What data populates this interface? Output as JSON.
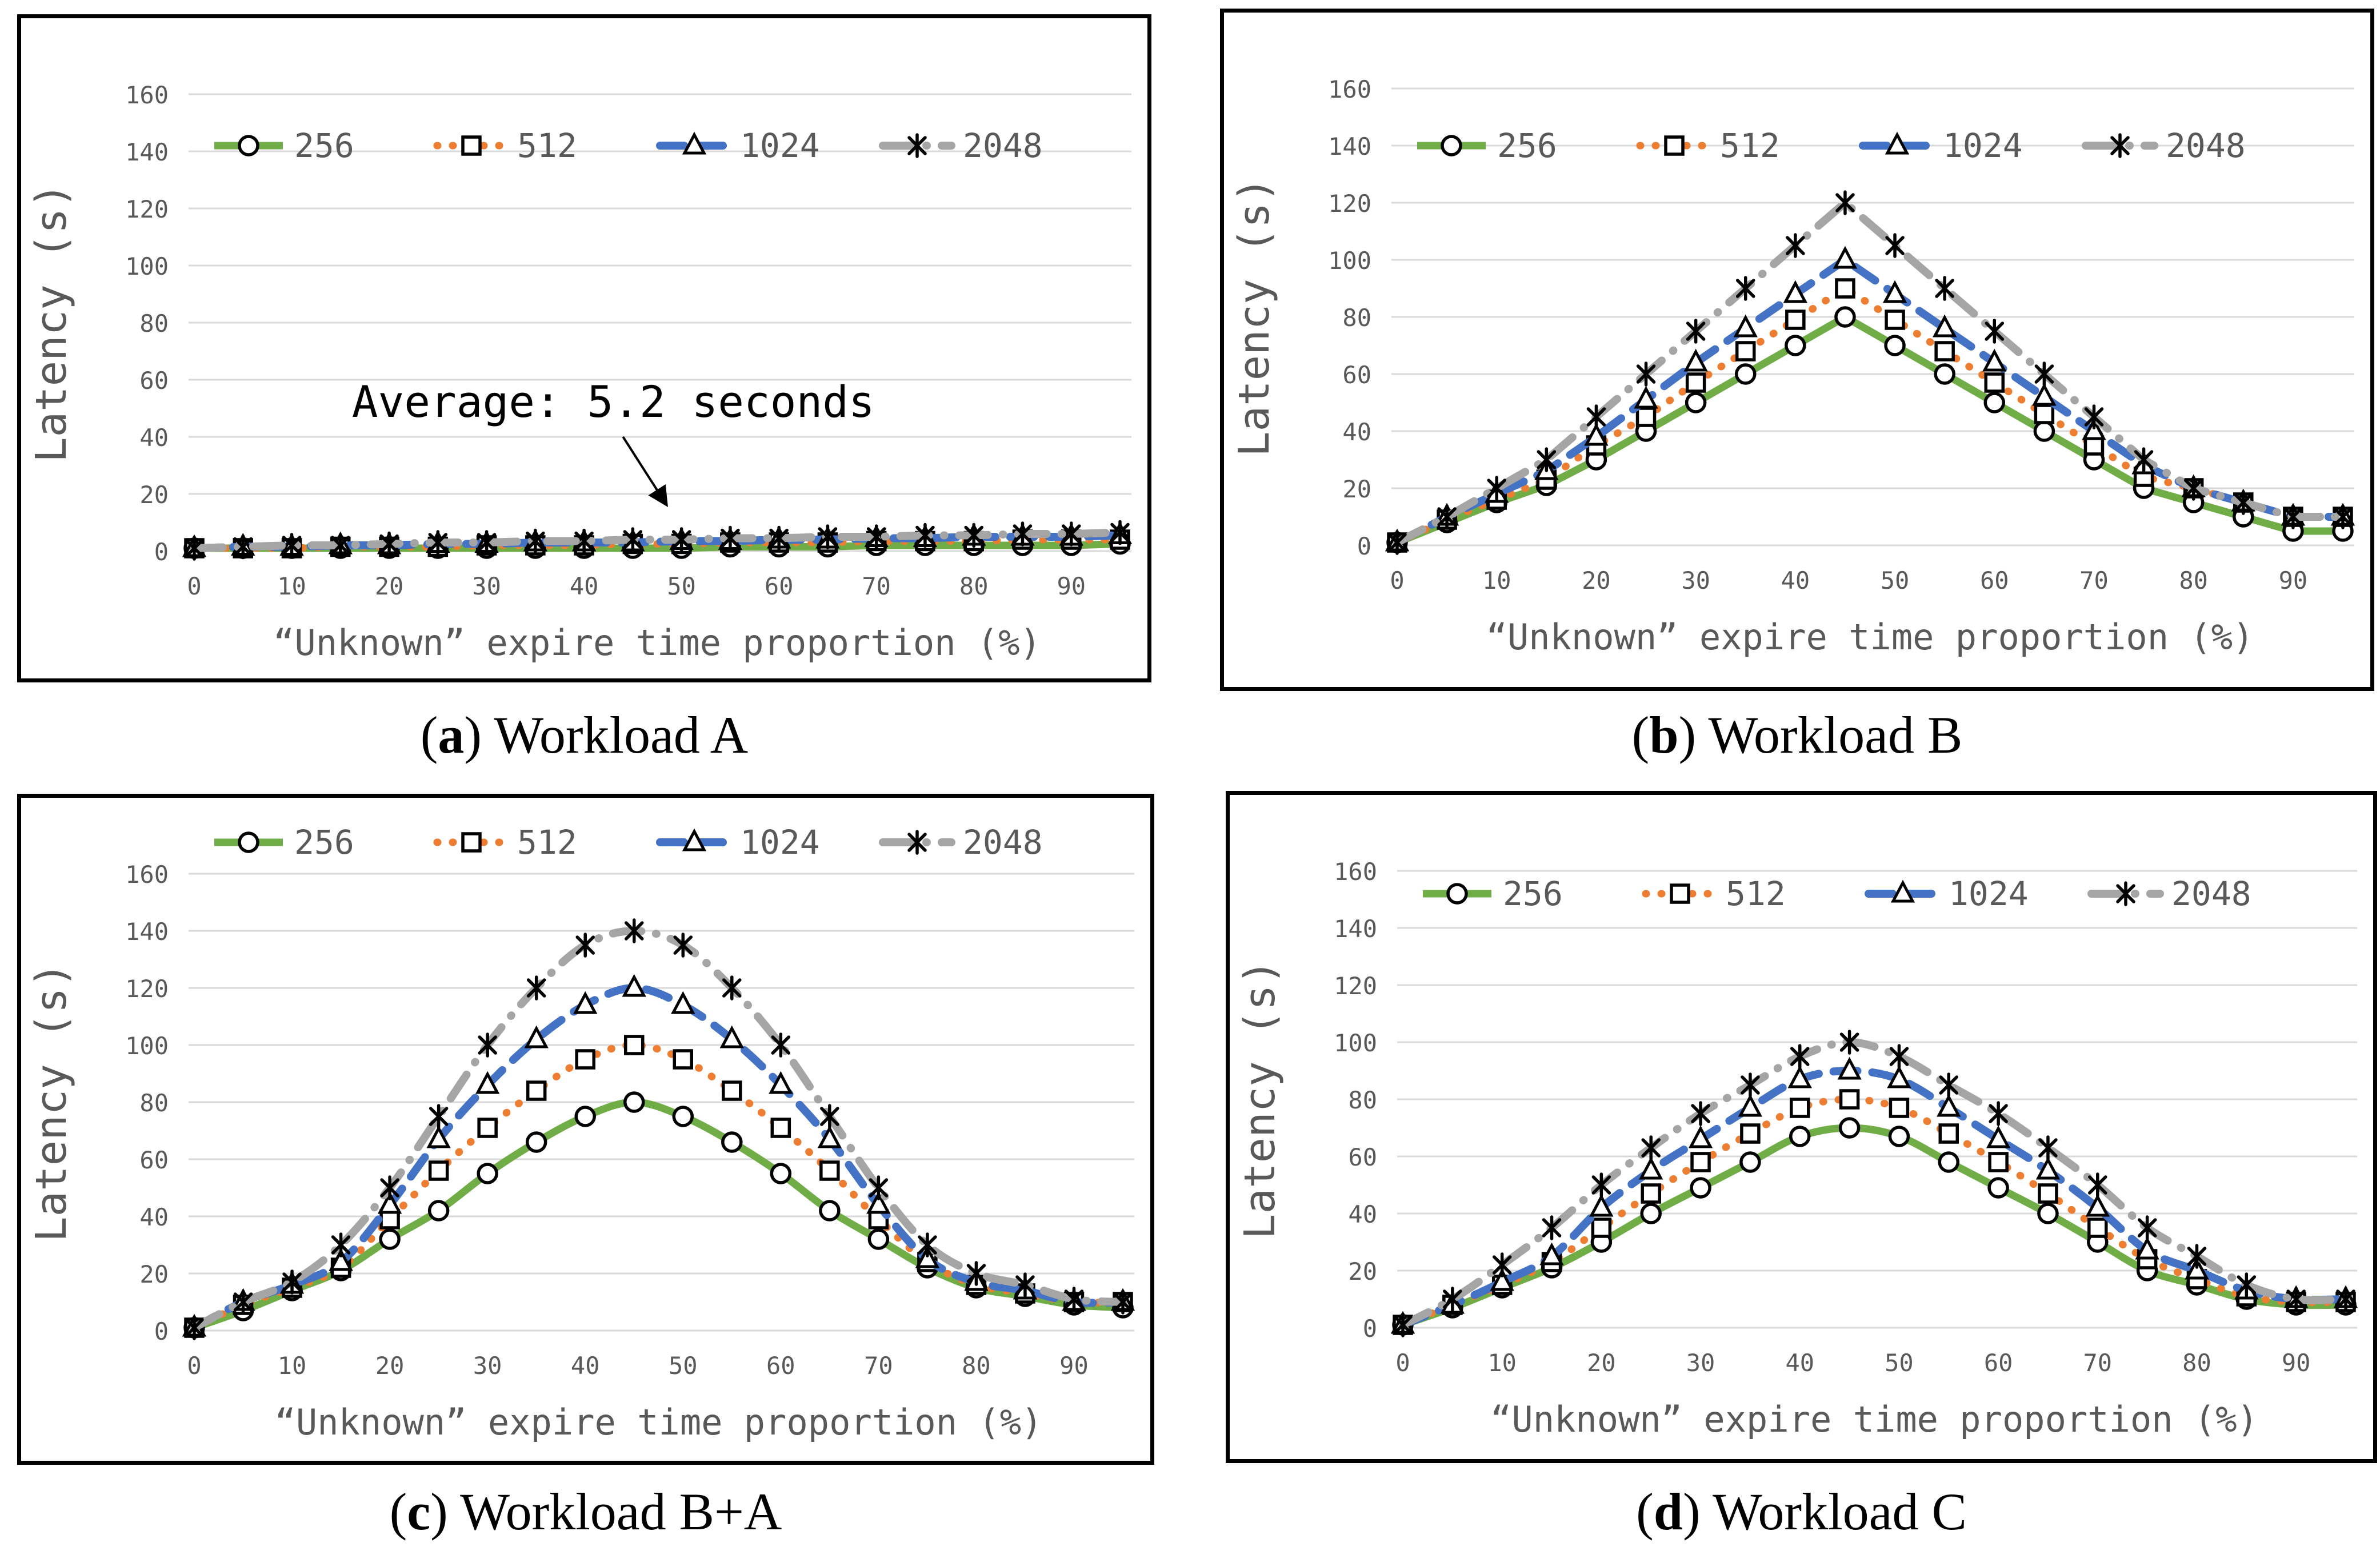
{
  "colors": {
    "green": "#70AD47",
    "orange": "#ED7D31",
    "blue": "#4472C4",
    "gray": "#A5A5A5",
    "axis_text": "#595959",
    "gridline": "#D9D9D9",
    "border": "#000000",
    "annotation": "#000000"
  },
  "chart_data": [
    {
      "type": "line",
      "caption": {
        "open": "(",
        "letter": "a",
        "close": ")",
        "rest": " Workload A"
      },
      "xlabel": "“Unknown” expire time proportion (%)",
      "ylabel": "Latency (s)",
      "ylim": [
        0,
        160
      ],
      "yticks": [
        0,
        20,
        40,
        60,
        80,
        100,
        120,
        140,
        160
      ],
      "xticks": [
        0,
        10,
        20,
        30,
        40,
        50,
        60,
        70,
        80,
        90
      ],
      "x": [
        0,
        5,
        10,
        15,
        20,
        25,
        30,
        35,
        40,
        45,
        50,
        55,
        60,
        65,
        70,
        75,
        80,
        85,
        90,
        95
      ],
      "grid": "horizontal",
      "legend_position": "top-inside",
      "legend_y": 230,
      "smooth": false,
      "series": [
        {
          "name": "256",
          "color": "green",
          "line_style": "solid",
          "marker": "circle",
          "values": [
            1,
            1,
            1,
            1,
            1,
            1,
            1,
            1,
            1,
            1,
            1,
            1.5,
            1.5,
            1.5,
            2,
            2,
            2,
            2,
            2,
            2.5
          ]
        },
        {
          "name": "512",
          "color": "orange",
          "line_style": "dot",
          "marker": "square",
          "values": [
            1,
            1,
            1,
            1.5,
            1.5,
            1.5,
            2,
            2,
            2,
            2.5,
            2.5,
            3,
            3,
            3,
            3.5,
            3.5,
            3.5,
            4,
            4,
            4
          ]
        },
        {
          "name": "1024",
          "color": "blue",
          "line_style": "dash",
          "marker": "triangle",
          "values": [
            1,
            1.5,
            1.5,
            2,
            2,
            2.5,
            2.5,
            3,
            3,
            3,
            3.5,
            3.5,
            4,
            4,
            4.5,
            4.5,
            5,
            5,
            5,
            5.5
          ]
        },
        {
          "name": "2048",
          "color": "gray",
          "line_style": "dash-dot",
          "marker": "star",
          "values": [
            1,
            1.5,
            2,
            2,
            2.5,
            3,
            3,
            3.5,
            3.5,
            4,
            4,
            4.5,
            4.5,
            5,
            5,
            5.5,
            5.5,
            6,
            6,
            6.5
          ]
        }
      ],
      "annotation": {
        "text": "Average: 5.2 seconds",
        "text_x_value": 43,
        "text_y_value": 47,
        "arrow_from": [
          44,
          40
        ],
        "arrow_to": [
          48.5,
          16
        ]
      }
    },
    {
      "type": "line",
      "caption": {
        "open": "(",
        "letter": "b",
        "close": ")",
        "rest": " Workload B"
      },
      "xlabel": "“Unknown” expire time proportion (%)",
      "ylabel": "Latency (s)",
      "ylim": [
        0,
        160
      ],
      "yticks": [
        0,
        20,
        40,
        60,
        80,
        100,
        120,
        140,
        160
      ],
      "xticks": [
        0,
        10,
        20,
        30,
        40,
        50,
        60,
        70,
        80,
        90
      ],
      "x": [
        0,
        5,
        10,
        15,
        20,
        25,
        30,
        35,
        40,
        45,
        50,
        55,
        60,
        65,
        70,
        75,
        80,
        85,
        90,
        95
      ],
      "grid": "horizontal",
      "legend_position": "top-inside",
      "legend_y": 240,
      "smooth": false,
      "series": [
        {
          "name": "256",
          "color": "green",
          "line_style": "solid",
          "marker": "circle",
          "values": [
            1,
            8,
            15,
            21,
            30,
            40,
            50,
            60,
            70,
            80,
            70,
            60,
            50,
            40,
            30,
            20,
            15,
            10,
            5,
            5
          ]
        },
        {
          "name": "512",
          "color": "orange",
          "line_style": "dot",
          "marker": "square",
          "values": [
            1,
            9,
            16,
            23,
            35,
            45,
            57,
            68,
            79,
            90,
            79,
            68,
            57,
            46,
            35,
            24,
            20,
            15,
            10,
            10
          ]
        },
        {
          "name": "1024",
          "color": "blue",
          "line_style": "dash",
          "marker": "triangle",
          "values": [
            1,
            10,
            18,
            26,
            38,
            51,
            64,
            76,
            88,
            100,
            88,
            76,
            64,
            52,
            40,
            28,
            20,
            15,
            10,
            10
          ]
        },
        {
          "name": "2048",
          "color": "gray",
          "line_style": "dash-dot",
          "marker": "star",
          "values": [
            1,
            10,
            20,
            30,
            45,
            60,
            75,
            90,
            105,
            120,
            105,
            90,
            75,
            60,
            45,
            30,
            20,
            15,
            10,
            10
          ]
        }
      ]
    },
    {
      "type": "line",
      "caption": {
        "open": "(",
        "letter": "c",
        "close": ")",
        "rest": " Workload B+A"
      },
      "xlabel": "“Unknown” expire time proportion (%)",
      "ylabel": "Latency (s)",
      "ylim": [
        0,
        160
      ],
      "yticks": [
        0,
        20,
        40,
        60,
        80,
        100,
        120,
        140,
        160
      ],
      "xticks": [
        0,
        10,
        20,
        30,
        40,
        50,
        60,
        70,
        80,
        90
      ],
      "x": [
        0,
        5,
        10,
        15,
        20,
        25,
        30,
        35,
        40,
        45,
        50,
        55,
        60,
        65,
        70,
        75,
        80,
        85,
        90,
        95
      ],
      "grid": "horizontal",
      "legend_position": "above-plot",
      "legend_y": 85,
      "smooth": true,
      "series": [
        {
          "name": "256",
          "color": "green",
          "line_style": "solid",
          "marker": "circle",
          "values": [
            1,
            7,
            14,
            21,
            32,
            42,
            55,
            66,
            75,
            80,
            75,
            66,
            55,
            42,
            32,
            22,
            15,
            12,
            9,
            8
          ]
        },
        {
          "name": "512",
          "color": "orange",
          "line_style": "dot",
          "marker": "square",
          "values": [
            1,
            9,
            15,
            22,
            39,
            56,
            71,
            84,
            95,
            100,
            95,
            84,
            71,
            56,
            39,
            24,
            16,
            13,
            10,
            10
          ]
        },
        {
          "name": "1024",
          "color": "blue",
          "line_style": "dash",
          "marker": "triangle",
          "values": [
            1,
            10,
            16,
            24,
            44,
            67,
            86,
            102,
            114,
            120,
            114,
            102,
            86,
            67,
            44,
            25,
            17,
            14,
            10,
            10
          ]
        },
        {
          "name": "2048",
          "color": "gray",
          "line_style": "dash-dot",
          "marker": "star",
          "values": [
            1,
            10,
            17,
            30,
            50,
            75,
            100,
            120,
            135,
            140,
            135,
            120,
            100,
            75,
            50,
            30,
            20,
            16,
            11,
            10
          ]
        }
      ]
    },
    {
      "type": "line",
      "caption": {
        "open": "(",
        "letter": "d",
        "close": ")",
        "rest": " Workload C"
      },
      "xlabel": "“Unknown” expire time proportion (%)",
      "ylabel": "Latency (s)",
      "ylim": [
        0,
        160
      ],
      "yticks": [
        0,
        20,
        40,
        60,
        80,
        100,
        120,
        140,
        160
      ],
      "xticks": [
        0,
        10,
        20,
        30,
        40,
        50,
        60,
        70,
        80,
        90
      ],
      "x": [
        0,
        5,
        10,
        15,
        20,
        25,
        30,
        35,
        40,
        45,
        50,
        55,
        60,
        65,
        70,
        75,
        80,
        85,
        90,
        95
      ],
      "grid": "horizontal",
      "legend_position": "top-inside",
      "legend_y": 180,
      "smooth": true,
      "series": [
        {
          "name": "256",
          "color": "green",
          "line_style": "solid",
          "marker": "circle",
          "values": [
            1,
            7,
            14,
            21,
            30,
            40,
            49,
            58,
            67,
            70,
            67,
            58,
            49,
            40,
            30,
            20,
            15,
            10,
            8,
            8
          ]
        },
        {
          "name": "512",
          "color": "orange",
          "line_style": "dot",
          "marker": "square",
          "values": [
            1,
            8,
            15,
            23,
            35,
            47,
            58,
            68,
            77,
            80,
            77,
            68,
            58,
            47,
            35,
            24,
            17,
            11,
            9,
            9
          ]
        },
        {
          "name": "1024",
          "color": "blue",
          "line_style": "dash",
          "marker": "triangle",
          "values": [
            1,
            8,
            16,
            25,
            42,
            55,
            66,
            77,
            87,
            90,
            87,
            77,
            66,
            55,
            42,
            27,
            20,
            13,
            10,
            10
          ]
        },
        {
          "name": "2048",
          "color": "gray",
          "line_style": "dash-dot",
          "marker": "star",
          "values": [
            1,
            10,
            22,
            35,
            50,
            63,
            75,
            85,
            95,
            100,
            95,
            85,
            75,
            63,
            50,
            35,
            25,
            15,
            10,
            10
          ]
        }
      ]
    }
  ]
}
